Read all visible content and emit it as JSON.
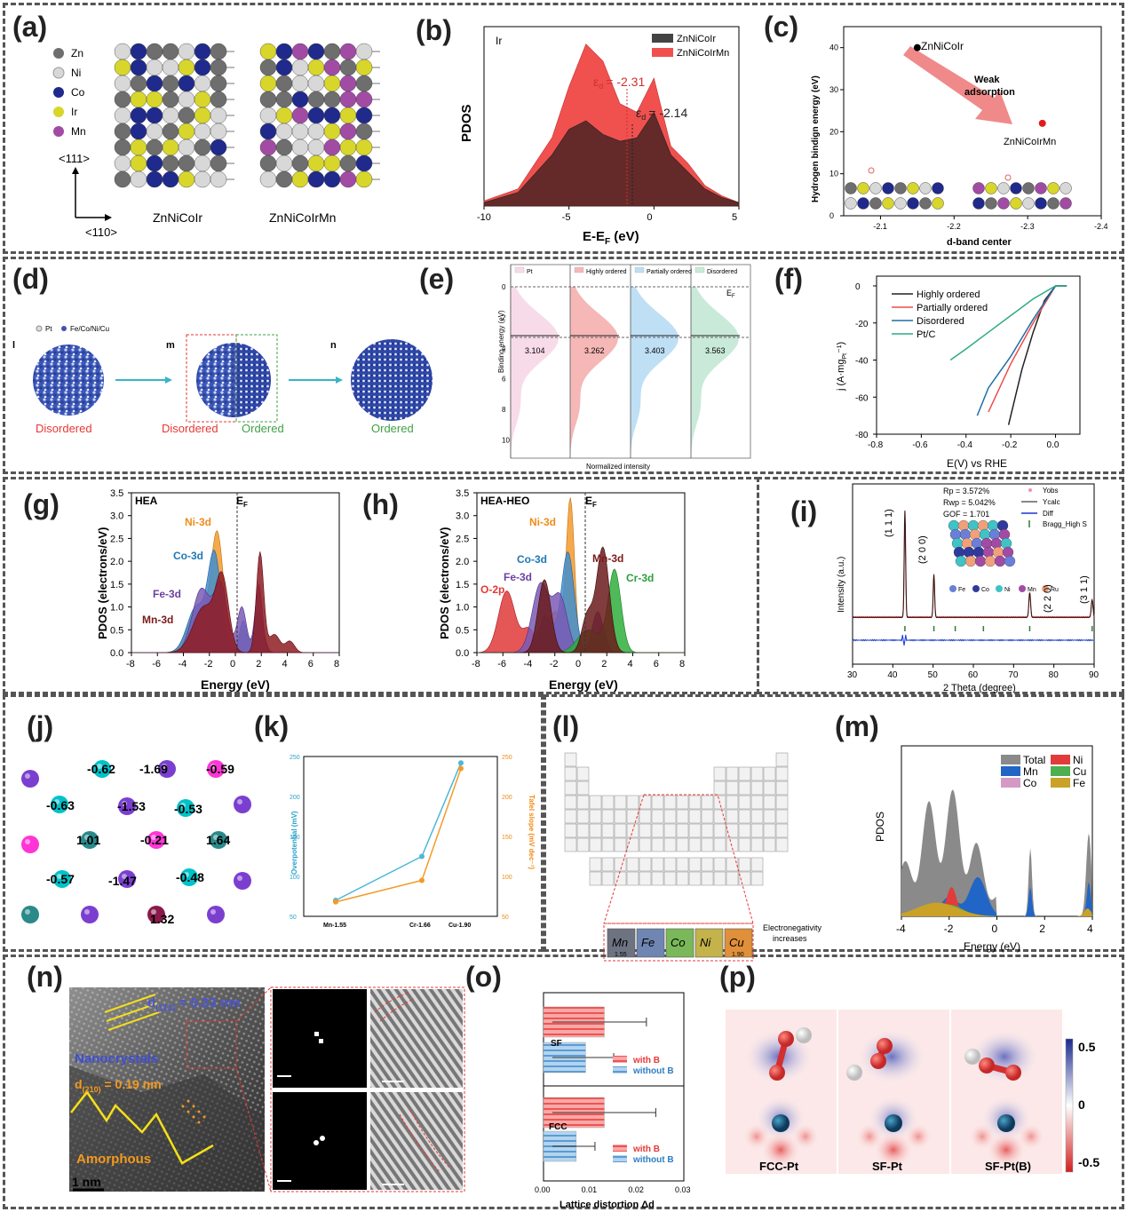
{
  "panels": {
    "a": {
      "label": "(a)",
      "legend": [
        "Zn",
        "Ni",
        "Co",
        "Ir",
        "Mn"
      ],
      "legend_colors": [
        "#6e6e6e",
        "#d8d8d8",
        "#1f2a8c",
        "#d8d62a",
        "#a24ba5"
      ],
      "axis_111": "<111>",
      "axis_110": "<110>",
      "struct1": "ZnNiCoIr",
      "struct2": "ZnNiCoIrMn"
    },
    "b": {
      "label": "(b)",
      "element": "Ir",
      "xlabel": "E-E",
      "xlabel_sub": "F",
      "xlabel_unit": " (eV)",
      "ylabel": "PDOS",
      "legend": [
        "ZnNiCoIr",
        "ZnNiCoIrMn"
      ],
      "ed_red": "= -2.31",
      "ed_black": "= -2.14",
      "eps": "ε",
      "eps_sub": "d",
      "xticks": [
        "-10",
        "-5",
        "0",
        "5"
      ]
    },
    "c": {
      "label": "(c)",
      "ylabel": "Hydrogen bindign energy (eV)",
      "xlabel": "d-band center",
      "point1": "ZnNiCoIr",
      "point2": "ZnNiCoIrMn",
      "arrow_text_1": "Weak",
      "arrow_text_2": "adsorption",
      "xticks": [
        "-2.1",
        "-2.2",
        "-2.3",
        "-2.4"
      ],
      "yticks": [
        "0",
        "10",
        "20",
        "30",
        "40"
      ]
    },
    "d": {
      "label": "(d)",
      "legend_pt": "Pt",
      "legend_other": "Fe/Co/Ni/Cu",
      "l": "l",
      "m": "m",
      "n": "n",
      "dis1": "Disordered",
      "dis2": "Disordered",
      "ord2": "Ordered",
      "ord3": "Ordered"
    },
    "e": {
      "label": "(e)",
      "legend": [
        "Pt",
        "Highly ordered",
        "Partially ordered",
        "Disordered"
      ],
      "ylabel": "Binding energy (eV)",
      "xlabel": "Normalized intensity",
      "ef": "E",
      "ef_sub": "F",
      "centers": [
        "3.104",
        "3.262",
        "3.403",
        "3.563"
      ],
      "yticks": [
        "0",
        "2",
        "4",
        "6",
        "8",
        "10"
      ]
    },
    "f": {
      "label": "(f)",
      "legend": [
        "Highly ordered",
        "Partially ordered",
        "Disordered",
        "Pt/C"
      ],
      "ylabel": "j (A·mg",
      "ylabel_sub": "Pt",
      "ylabel_end": "⁻¹)",
      "xlabel": "E(V) vs RHE",
      "xticks": [
        "-0.8",
        "-0.6",
        "-0.4",
        "-0.2",
        "0.0"
      ],
      "yticks": [
        "0",
        "-20",
        "-40",
        "-60",
        "-80"
      ]
    },
    "g": {
      "label": "(g)",
      "title": "HEA",
      "ylabel": "PDOS (electrons/eV)",
      "xlabel": "Energy (eV)",
      "ef": "E",
      "ef_sub": "F",
      "series": [
        "Ni-3d",
        "Co-3d",
        "Fe-3d",
        "Mn-3d"
      ],
      "xticks": [
        "-8",
        "-6",
        "-4",
        "-2",
        "0",
        "2",
        "4",
        "6",
        "8"
      ],
      "yticks": [
        "0.0",
        "0.5",
        "1.0",
        "1.5",
        "2.0",
        "2.5",
        "3.0",
        "3.5"
      ]
    },
    "h": {
      "label": "(h)",
      "title": "HEA-HEO",
      "ylabel": "PDOS (electrons/eV)",
      "xlabel": "Energy (eV)",
      "ef": "E",
      "ef_sub": "F",
      "series": [
        "Ni-3d",
        "Co-3d",
        "Fe-3d",
        "O-2p",
        "Mn-3d",
        "Cr-3d"
      ],
      "xticks": [
        "-8",
        "-6",
        "-4",
        "-2",
        "0",
        "2",
        "4",
        "6",
        "8"
      ],
      "yticks": [
        "0.0",
        "0.5",
        "1.0",
        "1.5",
        "2.0",
        "2.5",
        "3.0",
        "3.5"
      ]
    },
    "i": {
      "label": "(i)",
      "ylabel": "Intensity (a.u.)",
      "xlabel": "2 Theta (degree)",
      "stats": [
        "Rp = 3.572%",
        "Rwp = 5.042%",
        "GOF = 1.701"
      ],
      "legend": [
        "Yobs",
        "Ycalc",
        "Diff",
        "Bragg_High S"
      ],
      "peaks": [
        "(1 1 1)",
        "(2 0 0)",
        "(2 2 0)",
        "(3 1 1)"
      ],
      "elements": [
        "Fe",
        "Co",
        "Ni",
        "Mn",
        "Ru"
      ],
      "xticks": [
        "30",
        "40",
        "50",
        "60",
        "70",
        "80",
        "90"
      ]
    },
    "j": {
      "label": "(j)",
      "values": [
        "-0.62",
        "-1.69",
        "-0.59",
        "-0.63",
        "-1.53",
        "-0.53",
        "1.01",
        "-0.21",
        "1.64",
        "-0.57",
        "-1.47",
        "-0.48",
        "1.32"
      ]
    },
    "k": {
      "label": "(k)",
      "ylabel_left": "Overpotential (mV)",
      "ylabel_right": "Tafel slope (mV dec⁻¹)",
      "categories": [
        "Mn-1.55",
        "Cr-1.66",
        "Cu-1.90"
      ],
      "yticks_left": [
        "50",
        "100",
        "150",
        "200",
        "250"
      ],
      "yticks_right": [
        "50",
        "100",
        "150",
        "200",
        "250"
      ]
    },
    "l": {
      "label": "(l)",
      "elements": [
        "Mn",
        "Fe",
        "Co",
        "Ni",
        "Cu"
      ],
      "en_first": "1.55",
      "en_last": "1.90",
      "caption_1": "Electronegativity",
      "caption_2": "increases"
    },
    "m": {
      "label": "(m)",
      "ylabel": "PDOS",
      "xlabel": "Energy (eV)",
      "legend": [
        "Total",
        "Ni",
        "Mn",
        "Cu",
        "Co",
        "Fe"
      ],
      "xticks": [
        "-4",
        "-2",
        "0",
        "2",
        "4"
      ]
    },
    "n": {
      "label": "(n)",
      "d111": "d",
      "d111_sub": "(111)",
      "d111_val": " = 0.23 nm",
      "d210": "d",
      "d210_sub": "(210)",
      "d210_val": " = 0.19 nm",
      "nano": "Nanocrystals",
      "amorph": "Amorphous",
      "scale": "1 nm"
    },
    "o": {
      "label": "(o)",
      "xlabel": "Lattice distortion Δd",
      "groups": [
        "SF",
        "FCC"
      ],
      "legend": [
        "with B",
        "without B"
      ],
      "xticks": [
        "0.00",
        "0.01",
        "0.02",
        "0.03"
      ]
    },
    "p": {
      "label": "(p)",
      "titles": [
        "FCC-Pt",
        "SF-Pt",
        "SF-Pt(B)"
      ],
      "cbar": [
        "0.5",
        "0",
        "-0.5"
      ]
    }
  },
  "chart_data": [
    {
      "type": "area",
      "panel": "b",
      "x": [
        -10,
        -8,
        -6,
        -5,
        -4,
        -3,
        -2,
        -1,
        0,
        1,
        2,
        3,
        4,
        5
      ],
      "series": [
        {
          "name": "ZnNiCoIr",
          "values": [
            0.02,
            0.08,
            0.3,
            0.45,
            0.5,
            0.42,
            0.38,
            0.4,
            0.55,
            0.3,
            0.2,
            0.1,
            0.05,
            0.02
          ]
        },
        {
          "name": "ZnNiCoIrMn",
          "values": [
            0.03,
            0.1,
            0.4,
            0.7,
            0.95,
            0.85,
            0.6,
            0.55,
            0.75,
            0.35,
            0.25,
            0.12,
            0.06,
            0.02
          ]
        }
      ],
      "annotations": [
        "εd = -2.31",
        "εd = -2.14"
      ],
      "xlabel": "E-EF (eV)",
      "ylabel": "PDOS"
    },
    {
      "type": "scatter",
      "panel": "c",
      "series": [
        {
          "name": "ZnNiCoIr",
          "x": [
            -2.15
          ],
          "y": [
            40
          ]
        },
        {
          "name": "ZnNiCoIrMn",
          "x": [
            -2.32
          ],
          "y": [
            22
          ]
        }
      ],
      "xlabel": "d-band center",
      "ylabel": "Hydrogen bindign energy (eV)",
      "xlim": [
        -2.05,
        -2.4
      ],
      "ylim": [
        0,
        45
      ]
    },
    {
      "type": "line",
      "panel": "f",
      "series": [
        {
          "name": "Highly ordered",
          "x": [
            -0.21,
            -0.19,
            -0.15,
            -0.1,
            -0.05,
            0,
            0.05
          ],
          "y": [
            -75,
            -65,
            -45,
            -25,
            -8,
            0,
            0
          ]
        },
        {
          "name": "Partially ordered",
          "x": [
            -0.3,
            -0.25,
            -0.2,
            -0.1,
            0,
            0.05
          ],
          "y": [
            -68,
            -55,
            -42,
            -20,
            0,
            0
          ]
        },
        {
          "name": "Disordered",
          "x": [
            -0.35,
            -0.3,
            -0.2,
            -0.1,
            0,
            0.05
          ],
          "y": [
            -70,
            -55,
            -38,
            -18,
            0,
            0
          ]
        },
        {
          "name": "Pt/C",
          "x": [
            -0.47,
            -0.4,
            -0.3,
            -0.2,
            -0.1,
            0,
            0.05
          ],
          "y": [
            -40,
            -34,
            -25,
            -16,
            -7,
            0,
            0
          ]
        }
      ],
      "xlabel": "E(V) vs RHE",
      "ylim": [
        -80,
        0
      ],
      "xlim": [
        -0.8,
        0.1
      ]
    },
    {
      "type": "line",
      "panel": "k",
      "categories": [
        "Mn-1.55",
        "Cr-1.66",
        "Cu-1.90"
      ],
      "series": [
        {
          "name": "Overpotential (mV)",
          "values": [
            70,
            125,
            242
          ]
        },
        {
          "name": "Tafel slope (mV dec⁻¹)",
          "values": [
            68,
            95,
            235
          ]
        }
      ]
    }
  ]
}
